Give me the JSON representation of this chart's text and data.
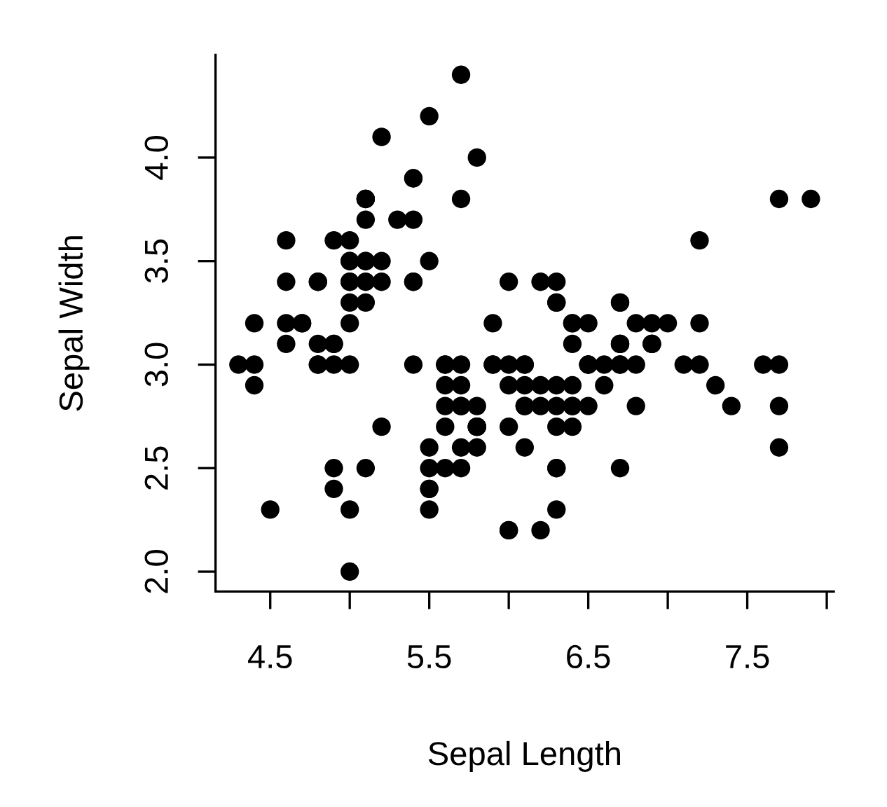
{
  "chart_data": {
    "type": "scatter",
    "xlabel": "Sepal Length",
    "ylabel": "Sepal Width",
    "marker": "circle",
    "color": "#000000",
    "grid": false,
    "legend": false,
    "xlim": [
      4.156,
      8.044
    ],
    "ylim": [
      1.904,
      4.496
    ],
    "xticks": [
      4.5,
      {
        "value": 5.0,
        "label": null
      },
      5.5,
      {
        "value": 6.0,
        "label": null
      },
      6.5,
      {
        "value": 7.0,
        "label": null
      },
      7.5,
      {
        "value": 8.0,
        "label": null
      }
    ],
    "yticks": [
      {
        "value": 2.0,
        "label": "2.0"
      },
      2.5,
      {
        "value": 3.0,
        "label": "3.0"
      },
      3.5,
      {
        "value": 4.0,
        "label": "4.0"
      }
    ],
    "x": [
      5.1,
      4.9,
      4.7,
      4.6,
      5.0,
      5.4,
      4.6,
      5.0,
      4.4,
      4.9,
      5.4,
      4.8,
      4.8,
      4.3,
      5.8,
      5.7,
      5.4,
      5.1,
      5.7,
      5.1,
      5.4,
      5.1,
      4.6,
      5.1,
      4.8,
      5.0,
      5.0,
      5.2,
      5.2,
      4.7,
      4.8,
      5.4,
      5.2,
      5.5,
      4.9,
      5.0,
      5.5,
      4.9,
      4.4,
      5.1,
      5.0,
      4.5,
      4.4,
      5.0,
      5.1,
      4.8,
      5.1,
      4.6,
      5.3,
      5.0,
      7.0,
      6.4,
      6.9,
      5.5,
      6.5,
      5.7,
      6.3,
      4.9,
      6.6,
      5.2,
      5.0,
      5.9,
      6.0,
      6.1,
      5.6,
      6.7,
      5.6,
      5.8,
      6.2,
      5.6,
      5.9,
      6.1,
      6.3,
      6.1,
      6.4,
      6.6,
      6.8,
      6.7,
      6.0,
      5.7,
      5.5,
      5.5,
      5.8,
      6.0,
      5.4,
      6.0,
      6.7,
      6.3,
      5.6,
      5.5,
      5.5,
      6.1,
      5.8,
      5.0,
      5.6,
      5.7,
      5.7,
      6.2,
      5.1,
      5.7,
      6.3,
      5.8,
      7.1,
      6.3,
      6.5,
      7.6,
      4.9,
      7.3,
      6.7,
      7.2,
      6.5,
      6.4,
      6.8,
      5.7,
      5.8,
      6.4,
      6.5,
      7.7,
      7.7,
      6.0,
      6.9,
      5.6,
      7.7,
      6.3,
      6.7,
      7.2,
      6.2,
      6.1,
      6.4,
      7.2,
      7.4,
      7.9,
      6.4,
      6.3,
      6.1,
      7.7,
      6.3,
      6.4,
      6.0,
      6.9,
      6.7,
      6.9,
      5.8,
      6.8,
      6.7,
      6.7,
      6.3,
      6.5,
      6.2,
      5.9
    ],
    "values": [
      3.5,
      3.0,
      3.2,
      3.1,
      3.6,
      3.9,
      3.4,
      3.4,
      2.9,
      3.1,
      3.7,
      3.4,
      3.0,
      3.0,
      4.0,
      4.4,
      3.9,
      3.5,
      3.8,
      3.8,
      3.4,
      3.7,
      3.6,
      3.3,
      3.4,
      3.0,
      3.4,
      3.5,
      3.4,
      3.2,
      3.1,
      3.4,
      4.1,
      4.2,
      3.1,
      3.2,
      3.5,
      3.6,
      3.0,
      3.4,
      3.5,
      2.3,
      3.2,
      3.5,
      3.8,
      3.0,
      3.8,
      3.2,
      3.7,
      3.3,
      3.2,
      3.2,
      3.1,
      2.3,
      2.8,
      2.8,
      3.3,
      2.4,
      2.9,
      2.7,
      2.0,
      3.0,
      2.2,
      2.9,
      2.9,
      3.1,
      3.0,
      2.7,
      2.2,
      2.5,
      3.2,
      2.8,
      2.5,
      2.8,
      2.9,
      3.0,
      2.8,
      3.0,
      2.9,
      2.6,
      2.4,
      2.4,
      2.7,
      2.7,
      3.0,
      3.4,
      3.1,
      2.3,
      3.0,
      2.5,
      2.6,
      3.0,
      2.6,
      2.3,
      2.7,
      3.0,
      2.9,
      2.9,
      2.5,
      2.8,
      3.3,
      2.7,
      3.0,
      2.9,
      3.0,
      3.0,
      2.5,
      2.9,
      2.5,
      3.6,
      3.2,
      2.7,
      3.0,
      2.5,
      2.8,
      3.2,
      3.0,
      3.8,
      2.6,
      2.2,
      3.2,
      2.8,
      2.8,
      2.7,
      3.3,
      3.2,
      2.8,
      3.0,
      2.8,
      3.0,
      2.8,
      3.8,
      2.8,
      2.8,
      2.6,
      3.0,
      3.4,
      3.1,
      3.0,
      3.1,
      3.1,
      3.1,
      2.7,
      3.2,
      3.3,
      3.0,
      2.5,
      3.0,
      3.4,
      3.0
    ]
  }
}
